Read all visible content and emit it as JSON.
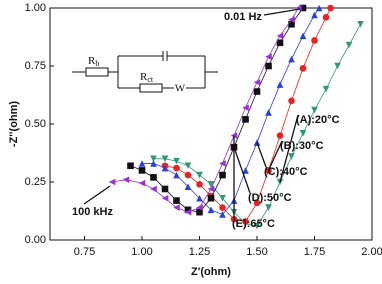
{
  "chart_data": {
    "type": "scatter",
    "xlabel": "Z'(ohm)",
    "ylabel": "-Z''(ohm)",
    "xlim": [
      0.6,
      2.0
    ],
    "ylim": [
      0,
      1
    ],
    "xticks": [
      0.75,
      {
        "value": 1,
        "label": "1.00"
      },
      1.25,
      {
        "value": 1.5,
        "label": "1.50"
      },
      1.75,
      {
        "value": 2,
        "label": "2.00"
      }
    ],
    "yticks": [
      {
        "value": 0,
        "label": "0.00"
      },
      0.25,
      {
        "value": 0.5,
        "label": "0.50"
      },
      0.75,
      {
        "value": 1,
        "label": "1.00"
      }
    ],
    "annotations": [
      "0.01 Hz",
      "100 kHz"
    ],
    "circuit": {
      "rb": {
        "main": "R",
        "sub": "b"
      },
      "rct": {
        "main": "R",
        "sub": "ct"
      },
      "w": "W"
    },
    "series": [
      {
        "name": "(A):20°C",
        "color": "#2e9a78",
        "marker": "tri-down",
        "x": [
          1.05,
          1.1,
          1.15,
          1.2,
          1.25,
          1.3,
          1.35,
          1.4,
          1.45,
          1.5,
          1.55,
          1.6,
          1.65,
          1.7,
          1.75,
          1.8,
          1.85,
          1.9,
          1.95
        ],
        "values": [
          0.35,
          0.35,
          0.34,
          0.32,
          0.28,
          0.24,
          0.18,
          0.12,
          0.07,
          0.06,
          0.14,
          0.25,
          0.36,
          0.46,
          0.56,
          0.65,
          0.75,
          0.84,
          0.93
        ]
      },
      {
        "name": "(B):30°C",
        "color": "#ee1f1f",
        "marker": "circle",
        "x": [
          1.1,
          1.15,
          1.2,
          1.25,
          1.3,
          1.35,
          1.4,
          1.45,
          1.5,
          1.55,
          1.6,
          1.65,
          1.7,
          1.75,
          1.8,
          1.82
        ],
        "values": [
          0.32,
          0.31,
          0.28,
          0.24,
          0.19,
          0.14,
          0.09,
          0.08,
          0.16,
          0.3,
          0.45,
          0.6,
          0.74,
          0.86,
          0.96,
          1.0
        ]
      },
      {
        "name": "(C):40°C",
        "color": "#2a3fe0",
        "marker": "tri-up",
        "x": [
          1.0,
          1.05,
          1.1,
          1.15,
          1.2,
          1.25,
          1.3,
          1.35,
          1.4,
          1.45,
          1.5,
          1.55,
          1.6,
          1.65,
          1.7,
          1.75,
          1.77
        ],
        "values": [
          0.33,
          0.33,
          0.31,
          0.28,
          0.23,
          0.18,
          0.13,
          0.11,
          0.17,
          0.3,
          0.42,
          0.55,
          0.67,
          0.78,
          0.88,
          0.97,
          1.0
        ]
      },
      {
        "name": "(D):50°C",
        "color": "#111111",
        "marker": "square",
        "x": [
          0.95,
          1.0,
          1.05,
          1.1,
          1.15,
          1.2,
          1.25,
          1.3,
          1.35,
          1.4,
          1.45,
          1.5,
          1.55,
          1.6,
          1.65,
          1.7
        ],
        "values": [
          0.32,
          0.3,
          0.27,
          0.22,
          0.17,
          0.13,
          0.12,
          0.18,
          0.28,
          0.4,
          0.52,
          0.64,
          0.75,
          0.85,
          0.93,
          1.0
        ]
      },
      {
        "name": "(E):65°C",
        "color": "#9b30d9",
        "marker": "tri-left",
        "x": [
          0.87,
          0.93,
          1.0,
          1.05,
          1.1,
          1.15,
          1.2,
          1.25,
          1.3,
          1.35,
          1.4,
          1.45,
          1.5,
          1.55,
          1.6,
          1.65,
          1.68
        ],
        "values": [
          0.25,
          0.26,
          0.245,
          0.22,
          0.18,
          0.14,
          0.12,
          0.14,
          0.22,
          0.33,
          0.45,
          0.57,
          0.68,
          0.79,
          0.88,
          0.95,
          1.0
        ]
      }
    ]
  }
}
